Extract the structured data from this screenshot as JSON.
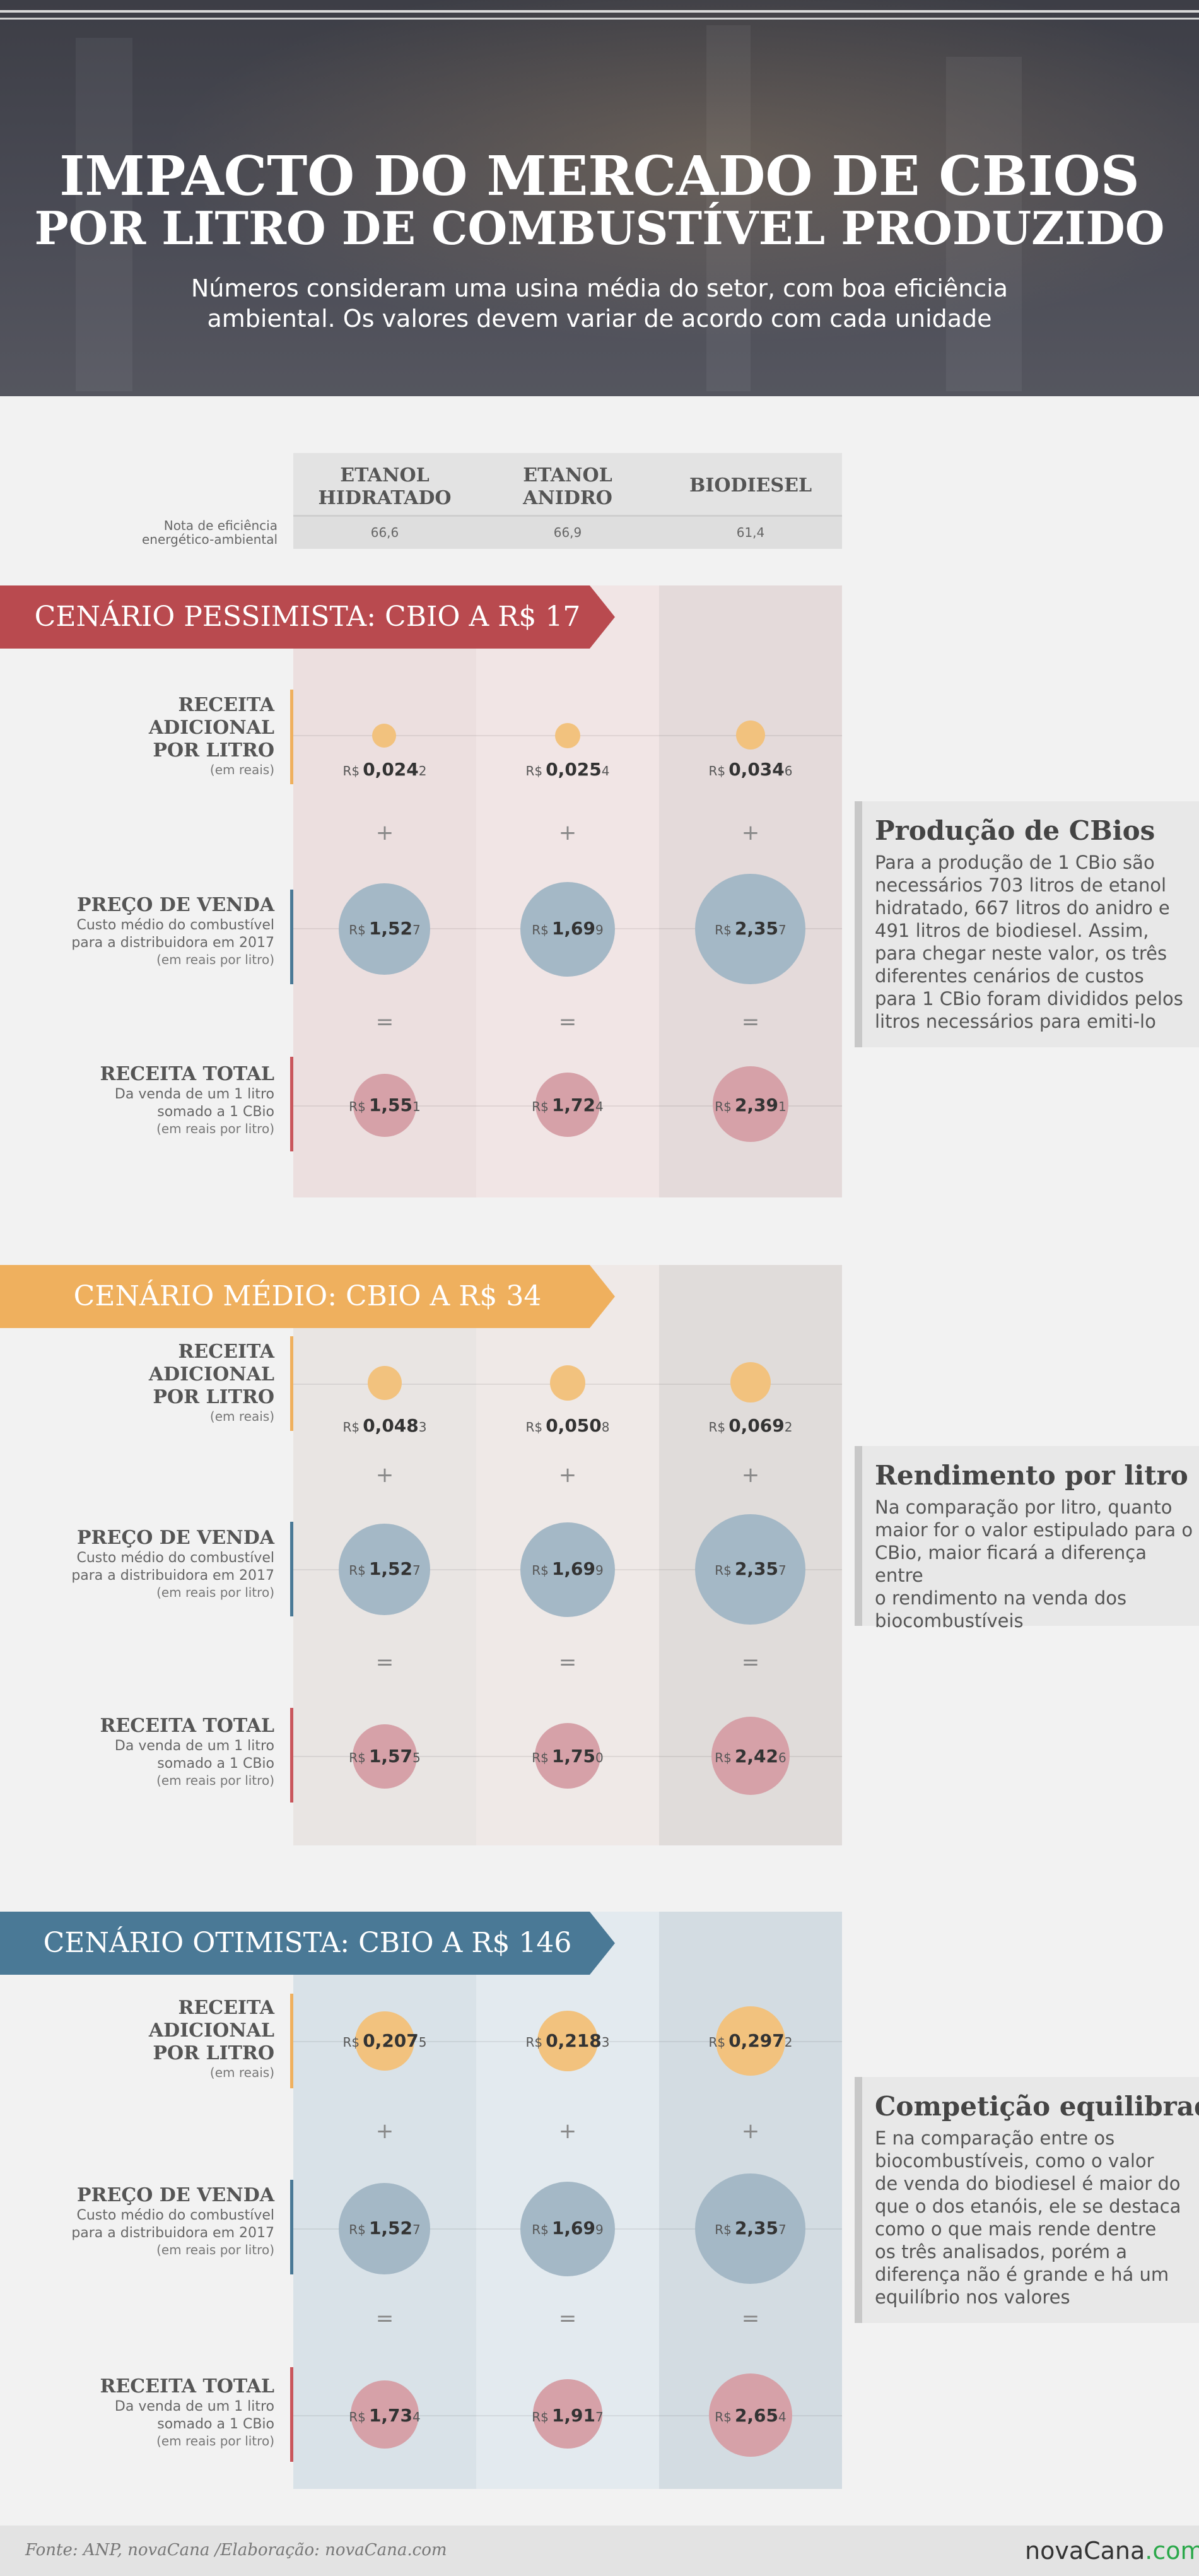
{
  "header": {
    "title_line1": "IMPACTO DO MERCADO DE CBIOS",
    "title_line2": "POR LITRO DE COMBUSTÍVEL PRODUZIDO",
    "subtitle_line1": "Números consideram uma usina média do setor, com boa eficiência",
    "subtitle_line2": "ambiental. Os valores devem variar de acordo com cada unidade"
  },
  "columns": [
    {
      "line1": "ETANOL",
      "line2": "HIDRATADO",
      "nota": "66,6"
    },
    {
      "line1": "ETANOL",
      "line2": "ANIDRO",
      "nota": "66,9"
    },
    {
      "line1": "BIODIESEL",
      "line2": "",
      "nota": "61,4"
    }
  ],
  "nota_label_line1": "Nota de eficiência",
  "nota_label_line2": "energético-ambiental",
  "row_labels": {
    "receita_adicional": {
      "l1": "RECEITA",
      "l2": "ADICIONAL",
      "l3": "POR LITRO",
      "unit": "(em reais)"
    },
    "preco_venda": {
      "title": "PREÇO DE VENDA",
      "l1": "Custo médio do combustível",
      "l2": "para a distribuidora em 2017",
      "unit": "(em reais por litro)"
    },
    "receita_total": {
      "title": "RECEITA TOTAL",
      "l1": "Da venda de um 1 litro",
      "l2": "somado a 1 CBio",
      "unit": "(em reais por litro)"
    }
  },
  "operators": {
    "plus": "+",
    "equals": "="
  },
  "currency": "R$",
  "scenarios": [
    {
      "banner": "CENÁRIO PESSIMISTA: CBIO A R$ 17",
      "color": "#b94a4f",
      "adicional": [
        {
          "main": "0,024",
          "last": "2"
        },
        {
          "main": "0,025",
          "last": "4"
        },
        {
          "main": "0,034",
          "last": "6"
        }
      ],
      "preco": [
        {
          "main": "1,52",
          "last": "7"
        },
        {
          "main": "1,69",
          "last": "9"
        },
        {
          "main": "2,35",
          "last": "7"
        }
      ],
      "total": [
        {
          "main": "1,55",
          "last": "1"
        },
        {
          "main": "1,72",
          "last": "4"
        },
        {
          "main": "2,39",
          "last": "1"
        }
      ],
      "side": {
        "title": "Produção de CBios",
        "lines": [
          "Para a produção de 1 CBio são",
          "necessários 703 litros de etanol",
          "hidratado, 667 litros do anidro e",
          "491 litros de biodiesel. Assim,",
          "para chegar neste valor, os três",
          "diferentes cenários de custos",
          "para 1 CBio foram divididos pelos",
          "litros necessários para emiti-lo"
        ]
      }
    },
    {
      "banner": "CENÁRIO MÉDIO: CBIO A R$ 34",
      "color": "#efb05e",
      "adicional": [
        {
          "main": "0,048",
          "last": "3"
        },
        {
          "main": "0,050",
          "last": "8"
        },
        {
          "main": "0,069",
          "last": "2"
        }
      ],
      "preco": [
        {
          "main": "1,52",
          "last": "7"
        },
        {
          "main": "1,69",
          "last": "9"
        },
        {
          "main": "2,35",
          "last": "7"
        }
      ],
      "total": [
        {
          "main": "1,57",
          "last": "5"
        },
        {
          "main": "1,75",
          "last": "0"
        },
        {
          "main": "2,42",
          "last": "6"
        }
      ],
      "side": {
        "title": "Rendimento por litro",
        "lines": [
          "Na comparação por litro, quanto",
          "maior for o valor estipulado para o",
          "CBio, maior ficará a diferença entre",
          "o rendimento na venda dos",
          "biocombustíveis"
        ]
      }
    },
    {
      "banner": "CENÁRIO OTIMISTA: CBIO A R$ 146",
      "color": "#4a7996",
      "adicional": [
        {
          "main": "0,207",
          "last": "5"
        },
        {
          "main": "0,218",
          "last": "3"
        },
        {
          "main": "0,297",
          "last": "2"
        }
      ],
      "preco": [
        {
          "main": "1,52",
          "last": "7"
        },
        {
          "main": "1,69",
          "last": "9"
        },
        {
          "main": "2,35",
          "last": "7"
        }
      ],
      "total": [
        {
          "main": "1,73",
          "last": "4"
        },
        {
          "main": "1,91",
          "last": "7"
        },
        {
          "main": "2,65",
          "last": "4"
        }
      ],
      "side": {
        "title": "Competição equilibrada",
        "lines": [
          "E na comparação entre os",
          "biocombustíveis, como o valor",
          "de venda do biodiesel é maior do",
          "que o dos etanóis, ele se destaca",
          "como o que mais rende dentre",
          "os três analisados, porém a",
          "diferença não é grande e há um",
          "equilíbrio nos valores"
        ]
      }
    }
  ],
  "footer": {
    "source": "Fonte: ANP, novaCana /Elaboração: novaCana.com",
    "logo_main": "novaCana",
    "logo_com": ".com"
  }
}
